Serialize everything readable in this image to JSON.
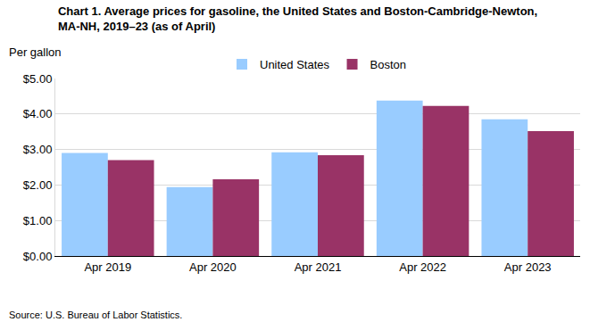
{
  "chart_data": {
    "type": "bar",
    "title": "Chart 1. Average prices for gasoline, the United States and Boston-Cambridge-Newton,\nMA-NH, 2019–23 (as of April)",
    "ylabel": "Per gallon",
    "source": "Source: U.S. Bureau of Labor Statistics.",
    "categories": [
      "Apr 2019",
      "Apr 2020",
      "Apr 2021",
      "Apr 2022",
      "Apr 2023"
    ],
    "series": [
      {
        "name": "United States",
        "color": "#99ccff",
        "values": [
          2.9,
          1.94,
          2.92,
          4.38,
          3.85
        ]
      },
      {
        "name": "Boston",
        "color": "#993366",
        "values": [
          2.7,
          2.16,
          2.84,
          4.23,
          3.52
        ]
      }
    ],
    "ylim": [
      0,
      5
    ],
    "yticks": [
      {
        "value": 0,
        "label": "$0.00"
      },
      {
        "value": 1,
        "label": "$1.00"
      },
      {
        "value": 2,
        "label": "$2.00"
      },
      {
        "value": 3,
        "label": "$3.00"
      },
      {
        "value": 4,
        "label": "$4.00"
      },
      {
        "value": 5,
        "label": "$5.00"
      }
    ],
    "grid": true,
    "legend": "top"
  }
}
